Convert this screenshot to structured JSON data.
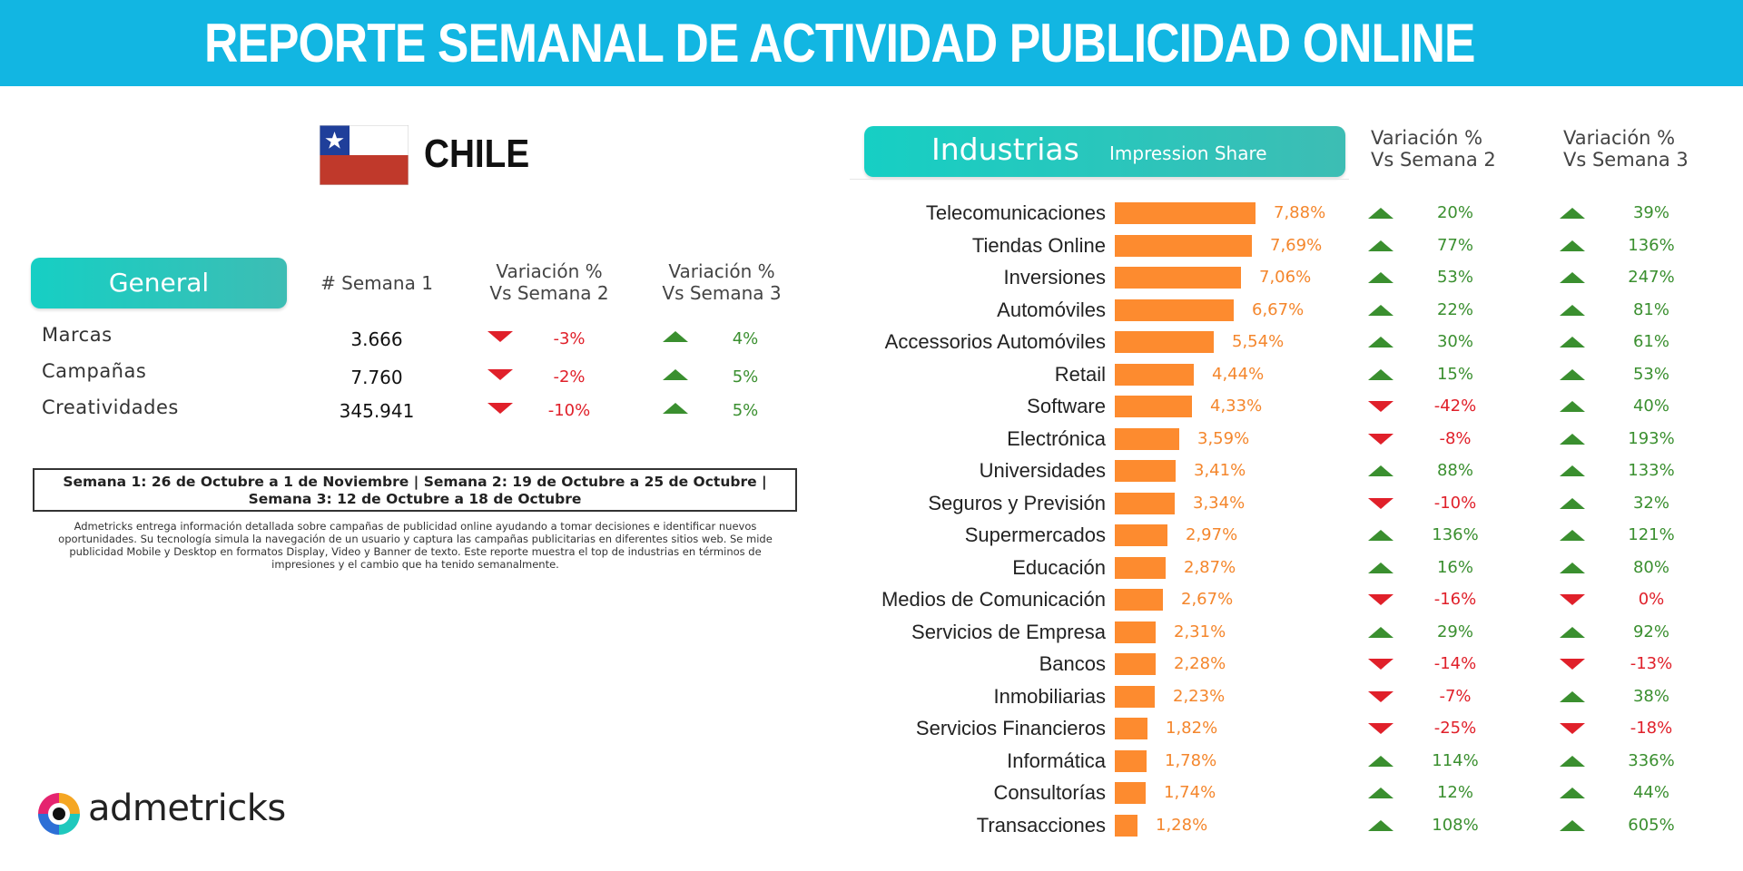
{
  "header": {
    "title": "REPORTE SEMANAL DE ACTIVIDAD PUBLICIDAD ONLINE"
  },
  "country": {
    "name": "CHILE",
    "flag_icon": "chile-flag-icon"
  },
  "general": {
    "title": "General",
    "col_semana1": "# Semana 1",
    "col_var2_line1": "Variación %",
    "col_var2_line2": "Vs Semana 2",
    "col_var3_line1": "Variación %",
    "col_var3_line2": "Vs Semana 3",
    "rows": [
      {
        "label": "Marcas",
        "value": "3.666",
        "var2": "-3%",
        "var2_dir": "down",
        "var3": "4%",
        "var3_dir": "up"
      },
      {
        "label": "Campañas",
        "value": "7.760",
        "var2": "-2%",
        "var2_dir": "down",
        "var3": "5%",
        "var3_dir": "up"
      },
      {
        "label": "Creatividades",
        "value": "345.941",
        "var2": "-10%",
        "var2_dir": "down",
        "var3": "5%",
        "var3_dir": "up"
      }
    ],
    "weeks_note": "Semana 1: 26 de Octubre a 1 de Noviembre | Semana 2: 19 de Octubre a 25 de Octubre | Semana 3: 12 de Octubre a 18 de Octubre",
    "description": "Admetricks entrega información detallada sobre campañas de publicidad online ayudando a tomar decisiones e identificar nuevos oportunidades. Su tecnología simula la navegación de un usuario y captura las campañas publicitarias en diferentes sitios web. Se mide publicidad Mobile y Desktop en formatos Display, Video y Banner de texto. Este reporte muestra el top de industrias en términos de impresiones y el cambio que ha tenido semanalmente."
  },
  "industries_panel": {
    "title": "Industrias",
    "subtitle": "Impression Share",
    "col_var2_line1": "Variación %",
    "col_var2_line2": "Vs Semana 2",
    "col_var3_line1": "Variación %",
    "col_var3_line2": "Vs Semana 3"
  },
  "chart_data": {
    "type": "bar",
    "orientation": "horizontal",
    "title": "Industrias",
    "subtitle": "Impression Share",
    "categories": [
      "Telecomunicaciones",
      "Tiendas Online",
      "Inversiones",
      "Automóviles",
      "Accessorios Automóviles",
      "Retail",
      "Software",
      "Electrónica",
      "Universidades",
      "Seguros y Previsión",
      "Supermercados",
      "Educación",
      "Medios de Comunicación",
      "Servicios de Empresa",
      "Bancos",
      "Inmobiliarias",
      "Servicios Financieros",
      "Informática",
      "Consultorías",
      "Transacciones"
    ],
    "values": [
      7.88,
      7.69,
      7.06,
      6.67,
      5.54,
      4.44,
      4.33,
      3.59,
      3.41,
      3.34,
      2.97,
      2.87,
      2.67,
      2.31,
      2.28,
      2.23,
      1.82,
      1.78,
      1.74,
      1.28
    ],
    "value_labels": [
      "7,88%",
      "7,69%",
      "7,06%",
      "6,67%",
      "5,54%",
      "4,44%",
      "4,33%",
      "3,59%",
      "3,41%",
      "3,34%",
      "2,97%",
      "2,87%",
      "2,67%",
      "2,31%",
      "2,28%",
      "2,23%",
      "1,82%",
      "1,78%",
      "1,74%",
      "1,28%"
    ],
    "var_vs_semana2": [
      "20%",
      "77%",
      "53%",
      "22%",
      "30%",
      "15%",
      "-42%",
      "-8%",
      "88%",
      "-10%",
      "136%",
      "16%",
      "-16%",
      "29%",
      "-14%",
      "-7%",
      "-25%",
      "114%",
      "12%",
      "108%"
    ],
    "var_vs_semana2_dir": [
      "up",
      "up",
      "up",
      "up",
      "up",
      "up",
      "down",
      "down",
      "up",
      "down",
      "up",
      "up",
      "down",
      "up",
      "down",
      "down",
      "down",
      "up",
      "up",
      "up"
    ],
    "var_vs_semana3": [
      "39%",
      "136%",
      "247%",
      "81%",
      "61%",
      "53%",
      "40%",
      "193%",
      "133%",
      "32%",
      "121%",
      "80%",
      "0%",
      "92%",
      "-13%",
      "38%",
      "-18%",
      "336%",
      "44%",
      "605%"
    ],
    "var_vs_semana3_dir": [
      "up",
      "up",
      "up",
      "up",
      "up",
      "up",
      "up",
      "up",
      "up",
      "up",
      "up",
      "up",
      "down",
      "up",
      "down",
      "up",
      "down",
      "up",
      "up",
      "up"
    ],
    "xlim": [
      0,
      7.88
    ],
    "colors": {
      "bar": "#fd8b2f",
      "up": "#3a8f2f",
      "down": "#e0202a",
      "accent": "#12b6e2",
      "pill": "#1fc8bd"
    }
  },
  "footer": {
    "logo_text": "admetricks"
  }
}
